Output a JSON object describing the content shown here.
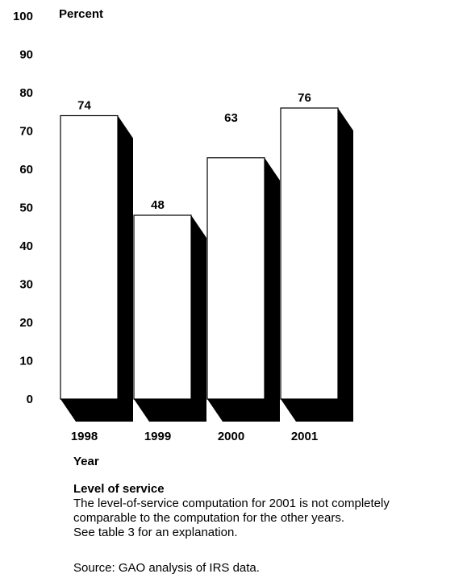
{
  "chart_data": {
    "type": "bar",
    "categories": [
      "1998",
      "1999",
      "2000",
      "2001"
    ],
    "values": [
      74,
      48,
      63,
      76
    ],
    "data_labels": [
      "74",
      "48",
      "63",
      "76"
    ],
    "ylabel": "Percent",
    "xlabel": "Year",
    "ylim": [
      0,
      100
    ],
    "yticks": [
      0,
      10,
      20,
      30,
      40,
      50,
      60,
      70,
      80,
      90,
      100
    ],
    "grid": false,
    "style": "3d-shadow",
    "bar_color": "#ffffff",
    "shadow_color": "#000000"
  },
  "legend": {
    "title": "Level of service",
    "note_lines": [
      "The level-of-service computation for 2001 is not completely",
      "comparable to the computation for the other years.",
      "See table 3 for an explanation."
    ]
  },
  "source": "Source: GAO analysis of IRS data."
}
